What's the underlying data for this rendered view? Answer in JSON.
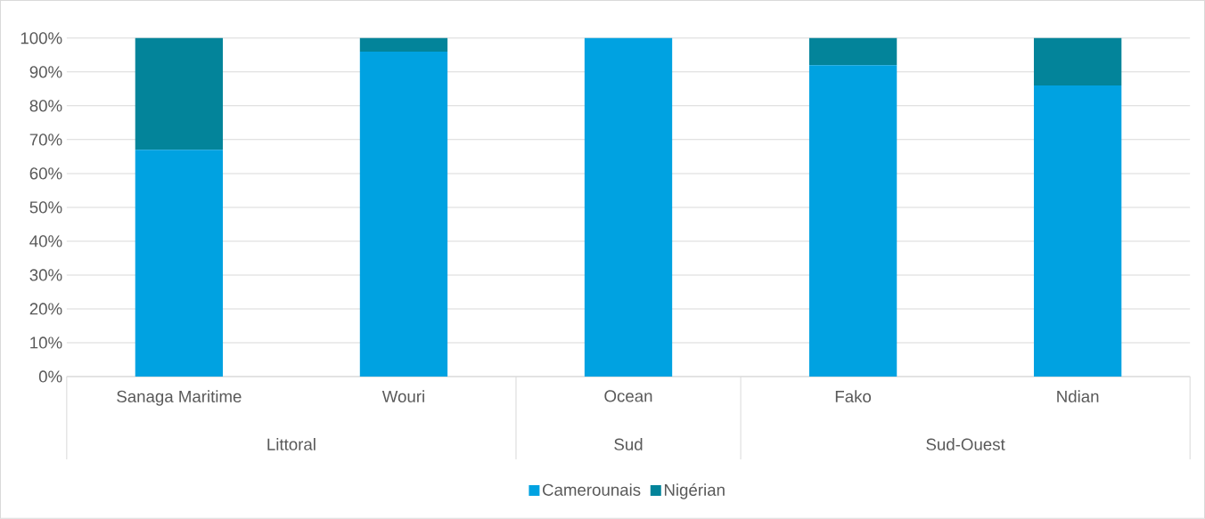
{
  "chart_data": {
    "type": "bar",
    "stacked": true,
    "categories": [
      "Sanaga Maritime",
      "Wouri",
      "Ocean",
      "Fako",
      "Ndian"
    ],
    "series": [
      {
        "name": "Camerounais",
        "color": "#00a2e1",
        "values": [
          67,
          96,
          100,
          92,
          86
        ]
      },
      {
        "name": "Nigérian",
        "color": "#03849a",
        "values": [
          33,
          4,
          0,
          8,
          14
        ]
      }
    ],
    "ylim": [
      0,
      100
    ],
    "yticks": [
      {
        "value": 0,
        "label": "0%"
      },
      {
        "value": 10,
        "label": "10%"
      },
      {
        "value": 20,
        "label": "20%"
      },
      {
        "value": 30,
        "label": "30%"
      },
      {
        "value": 40,
        "label": "40%"
      },
      {
        "value": 50,
        "label": "50%"
      },
      {
        "value": 60,
        "label": "60%"
      },
      {
        "value": 70,
        "label": "70%"
      },
      {
        "value": 80,
        "label": "80%"
      },
      {
        "value": 90,
        "label": "90%"
      },
      {
        "value": 100,
        "label": "100%"
      }
    ],
    "grid": "y",
    "legend": "bottom",
    "annotations": [
      "Littoral",
      "Sud",
      "Sud-Ouest"
    ]
  }
}
